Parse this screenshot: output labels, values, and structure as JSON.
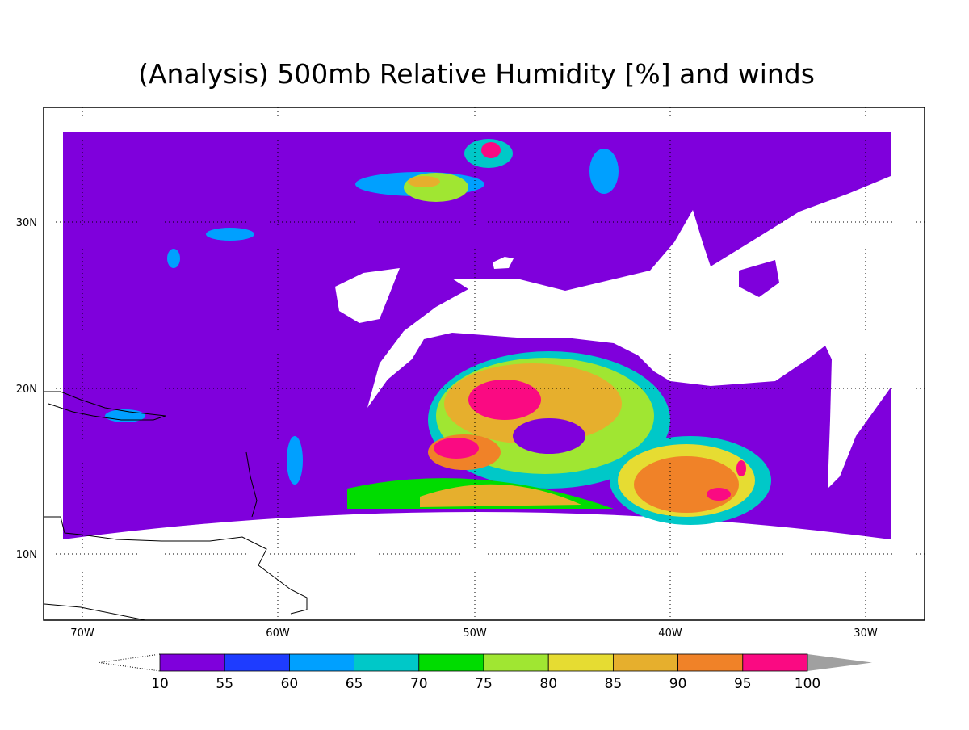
{
  "title": "(Analysis) 500mb Relative Humidity [%] and winds",
  "map": {
    "lat_labels": [
      "30N",
      "20N",
      "10N"
    ],
    "lon_labels": [
      "70W",
      "60W",
      "50W",
      "40W",
      "30W"
    ]
  },
  "colorbar": {
    "levels": [
      10,
      55,
      60,
      65,
      70,
      75,
      80,
      85,
      90,
      95,
      100
    ],
    "colors": [
      "#7f00dc",
      "#1e3cff",
      "#00a0ff",
      "#00c8c8",
      "#00dc00",
      "#a0e632",
      "#e6dc32",
      "#e6af2d",
      "#f08228",
      "#fa0a82"
    ],
    "over_color": "#a0a0a0"
  }
}
